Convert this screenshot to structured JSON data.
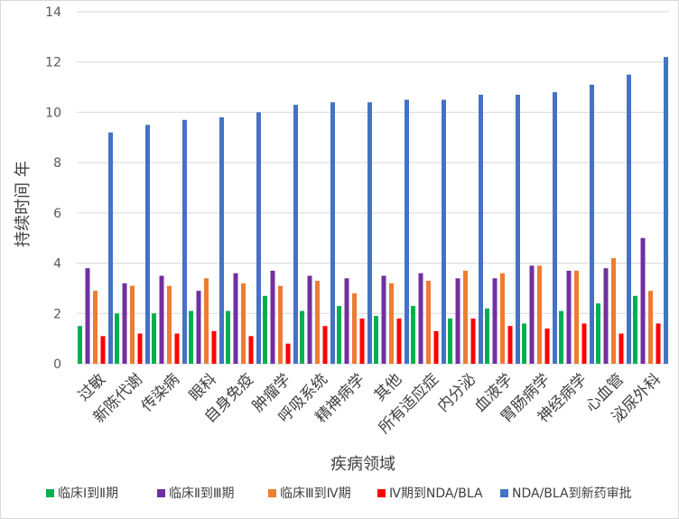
{
  "chart_data": {
    "type": "bar",
    "title": "",
    "xlabel": "疾病领域",
    "ylabel": "持续时间 年",
    "ylim": [
      0,
      14
    ],
    "yticks": [
      0,
      2,
      4,
      6,
      8,
      10,
      12,
      14
    ],
    "grid": true,
    "legend_position": "bottom",
    "categories": [
      "过敏",
      "新陈代谢",
      "传染病",
      "眼科",
      "自身免疫",
      "肿瘤学",
      "呼吸系统",
      "精神病学",
      "其他",
      "所有适应症",
      "内分泌",
      "血液学",
      "胃肠病学",
      "神经病学",
      "心血管",
      "泌尿外科"
    ],
    "series": [
      {
        "name": "临床Ⅰ到Ⅱ期",
        "color": "#00b050",
        "values": [
          1.5,
          2.0,
          2.0,
          2.1,
          2.1,
          2.7,
          2.1,
          2.3,
          1.9,
          2.3,
          1.8,
          2.2,
          1.6,
          2.1,
          2.4,
          2.7
        ]
      },
      {
        "name": "临床Ⅱ到Ⅲ期",
        "color": "#7030a0",
        "values": [
          3.8,
          3.2,
          3.5,
          2.9,
          3.6,
          3.7,
          3.5,
          3.4,
          3.5,
          3.6,
          3.4,
          3.4,
          3.9,
          3.7,
          3.8,
          5.0
        ]
      },
      {
        "name": "临床Ⅲ到Ⅳ期",
        "color": "#ed7d31",
        "values": [
          2.9,
          3.1,
          3.1,
          3.4,
          3.2,
          3.1,
          3.3,
          2.8,
          3.2,
          3.3,
          3.7,
          3.6,
          3.9,
          3.7,
          4.2,
          2.9
        ]
      },
      {
        "name": "Ⅳ期到NDA/BLA",
        "color": "#ff0000",
        "values": [
          1.1,
          1.2,
          1.2,
          1.3,
          1.1,
          0.8,
          1.5,
          1.8,
          1.8,
          1.3,
          1.8,
          1.5,
          1.4,
          1.6,
          1.2,
          1.6
        ]
      },
      {
        "name": "NDA/BLA到新药审批",
        "color": "#4472c4",
        "values": [
          9.2,
          9.5,
          9.7,
          9.8,
          10.0,
          10.3,
          10.4,
          10.4,
          10.5,
          10.5,
          10.7,
          10.7,
          10.8,
          11.1,
          11.5,
          12.2
        ]
      }
    ]
  }
}
